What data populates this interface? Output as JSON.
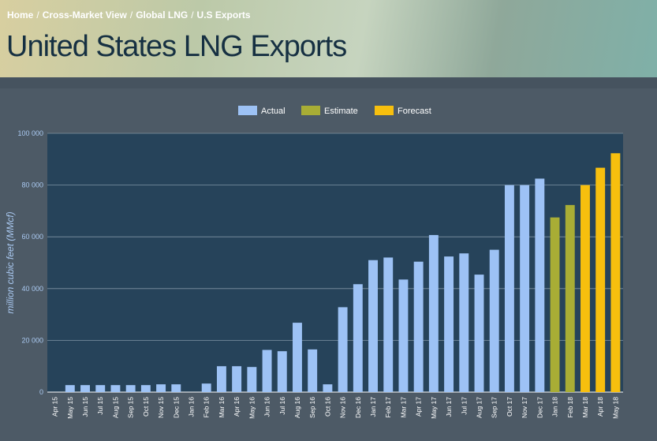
{
  "breadcrumb": [
    {
      "label": "Home"
    },
    {
      "label": "Cross-Market View"
    },
    {
      "label": "Global LNG"
    },
    {
      "label": "U.S Exports"
    }
  ],
  "page_title": "United States LNG Exports",
  "colors": {
    "actual": "#9dc2f5",
    "estimate": "#a8ad35",
    "forecast": "#f7bf0e",
    "plot_bg": "#26435a",
    "axis_text": "#a9c8f0",
    "tick_text": "#ffffff"
  },
  "chart_data": {
    "type": "bar",
    "ylabel": "million cubic feet (MMcf)",
    "ylim": [
      0,
      100000
    ],
    "yticks": [
      "0",
      "20 000",
      "40 000",
      "60 000",
      "80 000",
      "100 000"
    ],
    "grid": true,
    "legend_position": "top-center",
    "categories": [
      "Apr 15",
      "May 15",
      "Jun 15",
      "Jul 15",
      "Aug 15",
      "Sep 15",
      "Oct 15",
      "Nov 15",
      "Dec 15",
      "Jan 16",
      "Feb 16",
      "Mar 16",
      "Apr 16",
      "May 16",
      "Jun 16",
      "Jul 16",
      "Aug 16",
      "Sep 16",
      "Oct 16",
      "Nov 16",
      "Dec 16",
      "Jan 17",
      "Feb 17",
      "Mar 17",
      "Apr 17",
      "May 17",
      "Jun 17",
      "Jul 17",
      "Aug 17",
      "Sep 17",
      "Oct 17",
      "Nov 17",
      "Dec 17",
      "Jan 18",
      "Feb 18",
      "Mar 18",
      "Apr 18",
      "May 18"
    ],
    "series": [
      {
        "name": "Actual",
        "key": "actual",
        "values": [
          0,
          2700,
          2700,
          2700,
          2700,
          2700,
          2700,
          3000,
          3000,
          0,
          3300,
          10000,
          10000,
          9700,
          16300,
          15800,
          26800,
          16500,
          3000,
          32800,
          41700,
          51000,
          52000,
          43500,
          50400,
          60700,
          52400,
          53600,
          45400,
          55000,
          80000,
          80000,
          82500,
          null,
          null,
          null,
          null,
          null
        ]
      },
      {
        "name": "Estimate",
        "key": "estimate",
        "values": [
          null,
          null,
          null,
          null,
          null,
          null,
          null,
          null,
          null,
          null,
          null,
          null,
          null,
          null,
          null,
          null,
          null,
          null,
          null,
          null,
          null,
          null,
          null,
          null,
          null,
          null,
          null,
          null,
          null,
          null,
          null,
          null,
          null,
          67500,
          72300,
          null,
          null,
          null
        ]
      },
      {
        "name": "Forecast",
        "key": "forecast",
        "values": [
          null,
          null,
          null,
          null,
          null,
          null,
          null,
          null,
          null,
          null,
          null,
          null,
          null,
          null,
          null,
          null,
          null,
          null,
          null,
          null,
          null,
          null,
          null,
          null,
          null,
          null,
          null,
          null,
          null,
          null,
          null,
          null,
          null,
          null,
          null,
          80000,
          86700,
          92300
        ]
      }
    ]
  }
}
